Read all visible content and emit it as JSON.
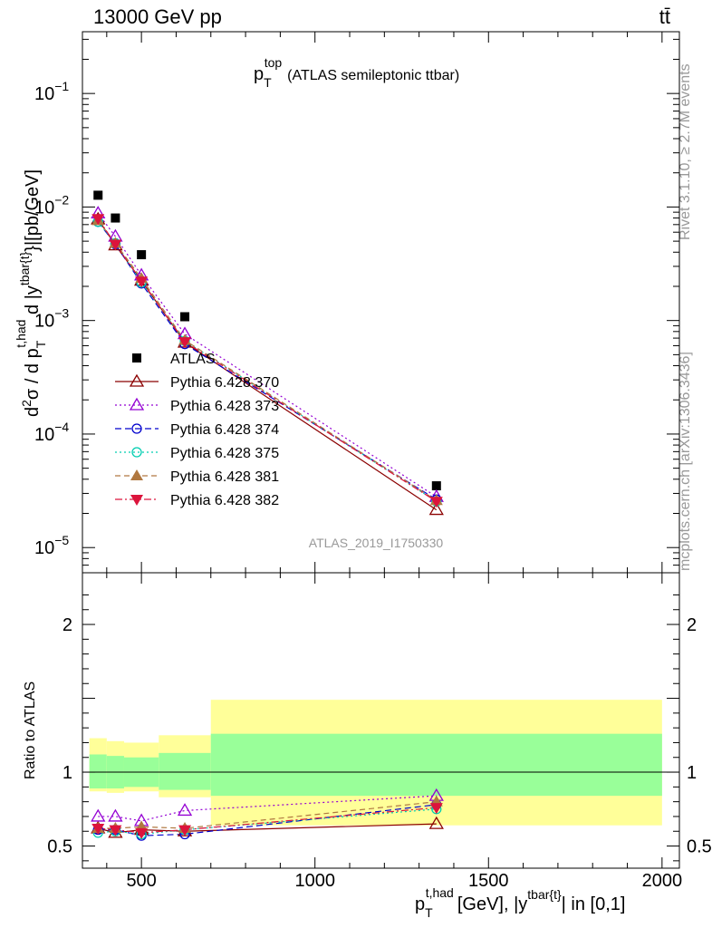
{
  "header": {
    "left": "13000 GeV pp",
    "right": "tt̄"
  },
  "side_labels": {
    "rivet": "Rivet 3.1.10, ≥ 2.7M events",
    "mcplots": "mcplots.cern.ch [arXiv:1306.3436]"
  },
  "watermark": "ATLAS_2019_I1750330",
  "colors": {
    "atlas": "#000000",
    "p370": "#8b0000",
    "p373": "#9400d3",
    "p374": "#0000cd",
    "p375": "#00cdb0",
    "p381": "#b07840",
    "p382": "#dc143c",
    "band_inner": "#99ff99",
    "band_outer": "#ffff99"
  },
  "chart_data": [
    {
      "type": "scatter",
      "title": "p_T^top (ATLAS semileptonic ttbar)",
      "title_main": "p",
      "title_sub": "T",
      "title_sup": "top",
      "title_rest": "(ATLAS semileptonic ttbar)",
      "ylabel": "d²σ / d p_T^{t,had} d |y^{tbar{t}}|[pb/GeV]",
      "yscale": "log",
      "ylim": [
        6e-06,
        0.35
      ],
      "xlim": [
        330,
        2050
      ],
      "y_ticks": [
        {
          "value": 0.1,
          "base": "10",
          "exp": "−1"
        },
        {
          "value": 0.01,
          "base": "10",
          "exp": "−2"
        },
        {
          "value": 0.001,
          "base": "10",
          "exp": "−3"
        },
        {
          "value": 0.0001,
          "base": "10",
          "exp": "−4"
        },
        {
          "value": 1e-05,
          "base": "10",
          "exp": "−5"
        }
      ],
      "legend_position": "left-middle",
      "x": [
        375,
        425,
        500,
        625,
        1350
      ],
      "series": [
        {
          "name": "ATLAS",
          "values": [
            0.0127,
            0.008,
            0.0038,
            0.00108,
            3.5e-05
          ]
        },
        {
          "name": "Pythia 6.428 370",
          "values": [
            0.0078,
            0.0046,
            0.00225,
            0.00064,
            2.15e-05
          ]
        },
        {
          "name": "Pythia 6.428 373",
          "values": [
            0.0088,
            0.0055,
            0.0025,
            0.00076,
            2.8e-05
          ]
        },
        {
          "name": "Pythia 6.428 374",
          "values": [
            0.0074,
            0.0047,
            0.00212,
            0.00062,
            2.65e-05
          ]
        },
        {
          "name": "Pythia 6.428 375",
          "values": [
            0.0074,
            0.0048,
            0.00216,
            0.00066,
            2.55e-05
          ]
        },
        {
          "name": "Pythia 6.428 381",
          "values": [
            0.0076,
            0.0048,
            0.00235,
            0.00067,
            2.6e-05
          ]
        },
        {
          "name": "Pythia 6.428 382",
          "values": [
            0.0079,
            0.0047,
            0.00222,
            0.00065,
            2.55e-05
          ]
        }
      ]
    },
    {
      "type": "scatter",
      "ylabel": "Ratio to ATLAS",
      "ylim": [
        0.35,
        2.35
      ],
      "y_ticks": [
        0.5,
        1,
        2
      ],
      "x_ticks": [
        500,
        1000,
        1500,
        2000
      ],
      "xlabel": "p_T^{t,had} [GeV], |y^{tbar{t}}| in [0,1]",
      "xlabel_main": "p",
      "xlabel_sub": "T",
      "xlabel_sup": "t,had",
      "xlabel_mid": "[GeV], |y",
      "xlabel_sup2": "tbar{t}",
      "xlabel_end": "| in [0,1]",
      "bands": [
        {
          "x0": 350,
          "x1": 400,
          "inner": [
            0.89,
            1.12
          ],
          "outer": [
            0.87,
            1.23
          ]
        },
        {
          "x0": 400,
          "x1": 450,
          "inner": [
            0.89,
            1.11
          ],
          "outer": [
            0.86,
            1.21
          ]
        },
        {
          "x0": 450,
          "x1": 550,
          "inner": [
            0.9,
            1.1
          ],
          "outer": [
            0.87,
            1.2
          ]
        },
        {
          "x0": 550,
          "x1": 700,
          "inner": [
            0.88,
            1.13
          ],
          "outer": [
            0.83,
            1.25
          ]
        },
        {
          "x0": 700,
          "x1": 2000,
          "inner": [
            0.84,
            1.26
          ],
          "outer": [
            0.64,
            1.49
          ]
        }
      ],
      "x": [
        375,
        425,
        500,
        625,
        1350
      ],
      "series": [
        {
          "name": "Pythia 6.428 370",
          "values": [
            0.62,
            0.59,
            0.61,
            0.6,
            0.65
          ]
        },
        {
          "name": "Pythia 6.428 373",
          "values": [
            0.7,
            0.7,
            0.67,
            0.74,
            0.84
          ]
        },
        {
          "name": "Pythia 6.428 374",
          "values": [
            0.61,
            0.61,
            0.57,
            0.58,
            0.78
          ]
        },
        {
          "name": "Pythia 6.428 375",
          "values": [
            0.59,
            0.6,
            0.58,
            0.61,
            0.75
          ]
        },
        {
          "name": "Pythia 6.428 381",
          "values": [
            0.62,
            0.62,
            0.63,
            0.62,
            0.8
          ]
        },
        {
          "name": "Pythia 6.428 382",
          "values": [
            0.62,
            0.61,
            0.59,
            0.61,
            0.76
          ]
        }
      ]
    }
  ]
}
